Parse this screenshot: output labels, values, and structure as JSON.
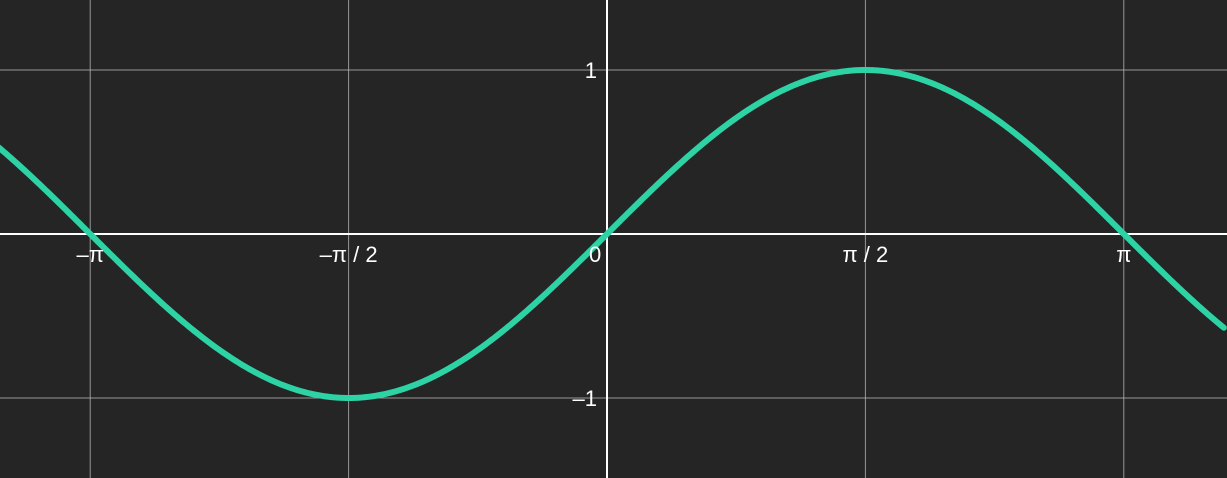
{
  "chart_data": {
    "type": "line",
    "title": "",
    "xlabel": "",
    "ylabel": "",
    "xlim": [
      -3.5,
      4.75
    ],
    "ylim": [
      -1.45,
      1.45
    ],
    "grid": true,
    "x_ticks": [
      {
        "value": -3.14159,
        "label": "–π"
      },
      {
        "value": -1.5708,
        "label": "–π / 2"
      },
      {
        "value": 0,
        "label": "0"
      },
      {
        "value": 1.5708,
        "label": "π / 2"
      },
      {
        "value": 3.14159,
        "label": "π"
      }
    ],
    "y_ticks": [
      {
        "value": 1,
        "label": "1"
      },
      {
        "value": -1,
        "label": "–1"
      }
    ],
    "series": [
      {
        "function": "sin",
        "color": "#2ed3a5",
        "x": [
          -3.64,
          -3.14159,
          -2.35619,
          -1.5708,
          -0.785398,
          0,
          0.785398,
          1.5708,
          2.35619,
          3.14159,
          3.92699,
          3.66
        ],
        "values": [
          0.478,
          0,
          -0.7071,
          -1,
          -0.7071,
          0,
          0.7071,
          1,
          0.7071,
          0,
          -0.7071,
          -0.503
        ]
      }
    ]
  },
  "colors": {
    "background": "#252525",
    "grid": "#bdbdbd",
    "axis": "#ffffff",
    "curve": "#2ed3a5",
    "text": "#ffffff"
  }
}
